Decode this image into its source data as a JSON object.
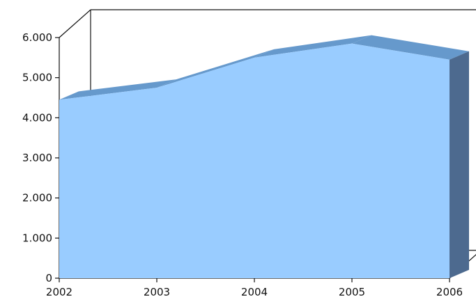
{
  "chart_data": {
    "type": "area",
    "x": [
      "2002",
      "2003",
      "2004",
      "2005",
      "2006"
    ],
    "values": [
      4450,
      4750,
      5500,
      5850,
      5450
    ],
    "ylim": [
      0,
      6000
    ],
    "y_ticks": [
      "0",
      "1.000",
      "2.000",
      "3.000",
      "4.000",
      "5.000",
      "6.000"
    ],
    "grid": false,
    "legend": "none",
    "style": "3d",
    "colors": {
      "front": "#99ccff",
      "top": "#6699cc",
      "side": "#4d6a8f",
      "axis": "#111111"
    }
  }
}
